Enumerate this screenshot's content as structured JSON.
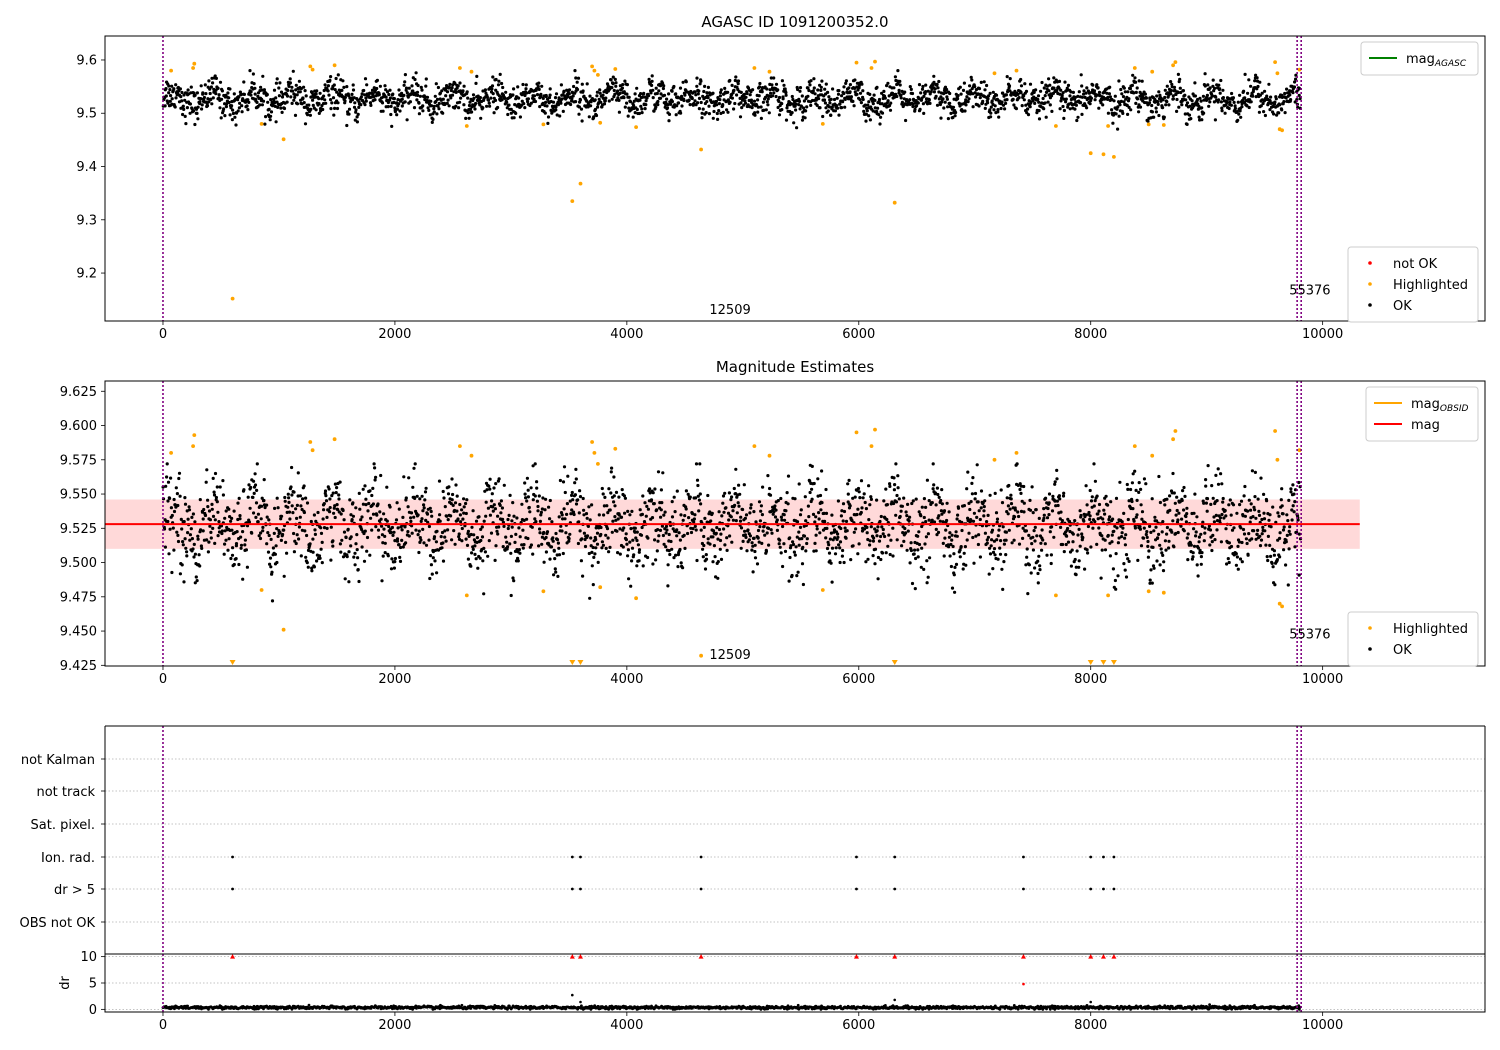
{
  "figure": {
    "title": "AGASC ID 1091200352.0"
  },
  "chart_data": [
    {
      "id": "top",
      "type": "scatter",
      "title": "AGASC ID 1091200352.0",
      "xlabel": "",
      "ylabel": "",
      "xlim": [
        -500,
        11400
      ],
      "ylim": [
        9.11,
        9.645
      ],
      "xticks": [
        0,
        2000,
        4000,
        6000,
        8000,
        10000
      ],
      "yticks": [
        9.2,
        9.3,
        9.4,
        9.5,
        9.6
      ],
      "ytick_labels": [
        "9.2",
        "9.3",
        "9.4",
        "9.5",
        "9.6"
      ],
      "grid": false,
      "legend_upper": {
        "placement": "top-right",
        "entries": [
          {
            "label": "mag",
            "sub": "AGASC",
            "color": "#008000",
            "kind": "line"
          }
        ]
      },
      "legend_lower": {
        "placement": "bottom-right",
        "entries": [
          {
            "label": "not OK",
            "color": "#ff0000",
            "kind": "dot"
          },
          {
            "label": "Highlighted",
            "color": "#ffa500",
            "kind": "dot"
          },
          {
            "label": "OK",
            "color": "#000000",
            "kind": "dot"
          }
        ]
      },
      "annotations": [
        {
          "text": "12509",
          "x": 4660,
          "y": 9.125
        },
        {
          "text": "55376",
          "x": 9660,
          "y": 9.162
        }
      ],
      "vlines": [
        0,
        9780,
        9815
      ],
      "series": {
        "ok": {
          "color": "#000000",
          "x_start": 0,
          "x_end": 9810,
          "center": 9.527,
          "spread": 0.035,
          "wave": 0.012
        },
        "highlighted": {
          "color": "#ffa500",
          "points": [
            [
              600,
              9.152
            ],
            [
              3530,
              9.335
            ],
            [
              3600,
              9.368
            ],
            [
              4640,
              9.432
            ],
            [
              6310,
              9.332
            ],
            [
              1040,
              9.451
            ],
            [
              8000,
              9.425
            ],
            [
              8110,
              9.423
            ],
            [
              8200,
              9.418
            ],
            [
              70,
              9.58
            ],
            [
              260,
              9.585
            ],
            [
              270,
              9.593
            ],
            [
              1270,
              9.588
            ],
            [
              1290,
              9.582
            ],
            [
              1480,
              9.59
            ],
            [
              2560,
              9.585
            ],
            [
              2660,
              9.578
            ],
            [
              3700,
              9.588
            ],
            [
              3720,
              9.58
            ],
            [
              3750,
              9.572
            ],
            [
              3900,
              9.583
            ],
            [
              5100,
              9.585
            ],
            [
              5230,
              9.578
            ],
            [
              5980,
              9.595
            ],
            [
              6110,
              9.585
            ],
            [
              6140,
              9.597
            ],
            [
              7170,
              9.575
            ],
            [
              7360,
              9.58
            ],
            [
              8380,
              9.585
            ],
            [
              8530,
              9.578
            ],
            [
              8710,
              9.59
            ],
            [
              8730,
              9.596
            ],
            [
              9590,
              9.596
            ],
            [
              9610,
              9.575
            ],
            [
              9800,
              9.582
            ],
            [
              850,
              9.48
            ],
            [
              2620,
              9.476
            ],
            [
              3280,
              9.479
            ],
            [
              3770,
              9.482
            ],
            [
              4080,
              9.474
            ],
            [
              5690,
              9.48
            ],
            [
              7700,
              9.476
            ],
            [
              8150,
              9.476
            ],
            [
              8500,
              9.479
            ],
            [
              8630,
              9.478
            ],
            [
              9630,
              9.47
            ],
            [
              9650,
              9.468
            ]
          ]
        }
      }
    },
    {
      "id": "middle",
      "type": "scatter",
      "title": "Magnitude Estimates",
      "xlabel": "",
      "ylabel": "",
      "xlim": [
        -500,
        11400
      ],
      "ylim": [
        9.4245,
        9.6325
      ],
      "xticks": [
        0,
        2000,
        4000,
        6000,
        8000,
        10000
      ],
      "yticks": [
        9.425,
        9.45,
        9.475,
        9.5,
        9.525,
        9.55,
        9.575,
        9.6,
        9.625
      ],
      "ytick_labels": [
        "9.425",
        "9.450",
        "9.475",
        "9.500",
        "9.525",
        "9.550",
        "9.575",
        "9.600",
        "9.625"
      ],
      "grid": false,
      "legend_upper": {
        "placement": "top-right",
        "entries": [
          {
            "label": "mag",
            "sub": "OBSID",
            "color": "#ffa500",
            "kind": "line"
          },
          {
            "label": "mag",
            "sub": "",
            "color": "#ff0000",
            "kind": "line"
          }
        ]
      },
      "legend_lower": {
        "placement": "bottom-right",
        "entries": [
          {
            "label": "Highlighted",
            "color": "#ffa500",
            "kind": "dot"
          },
          {
            "label": "OK",
            "color": "#000000",
            "kind": "dot"
          }
        ]
      },
      "annotations": [
        {
          "text": "12509",
          "x": 4660,
          "y": 9.431
        },
        {
          "text": "55376",
          "x": 9660,
          "y": 9.446
        }
      ],
      "vlines": [
        0,
        9780,
        9815
      ],
      "mag_line": {
        "value": 9.528,
        "x_start": -500,
        "x_end": 10320,
        "color": "#ff0000"
      },
      "band": {
        "low": 9.51,
        "high": 9.546,
        "x_start": -500,
        "x_end": 10320,
        "color": "#ffc0c0"
      },
      "clipped_markers": [
        600,
        3530,
        3600,
        6310,
        8000,
        8110,
        8200
      ],
      "series": {
        "ok": {
          "color": "#000000",
          "x_start": 0,
          "x_end": 9810,
          "center": 9.527,
          "spread": 0.035,
          "wave": 0.012
        },
        "highlighted": {
          "color": "#ffa500",
          "points": [
            [
              4640,
              9.432
            ],
            [
              1040,
              9.451
            ],
            [
              70,
              9.58
            ],
            [
              260,
              9.585
            ],
            [
              270,
              9.593
            ],
            [
              1270,
              9.588
            ],
            [
              1290,
              9.582
            ],
            [
              1480,
              9.59
            ],
            [
              2560,
              9.585
            ],
            [
              2660,
              9.578
            ],
            [
              3700,
              9.588
            ],
            [
              3720,
              9.58
            ],
            [
              3750,
              9.572
            ],
            [
              3900,
              9.583
            ],
            [
              5100,
              9.585
            ],
            [
              5230,
              9.578
            ],
            [
              5980,
              9.595
            ],
            [
              6110,
              9.585
            ],
            [
              6140,
              9.597
            ],
            [
              7170,
              9.575
            ],
            [
              7360,
              9.58
            ],
            [
              8380,
              9.585
            ],
            [
              8530,
              9.578
            ],
            [
              8710,
              9.59
            ],
            [
              8730,
              9.596
            ],
            [
              9590,
              9.596
            ],
            [
              9610,
              9.575
            ],
            [
              9800,
              9.582
            ],
            [
              850,
              9.48
            ],
            [
              2620,
              9.476
            ],
            [
              3280,
              9.479
            ],
            [
              3770,
              9.482
            ],
            [
              4080,
              9.474
            ],
            [
              5690,
              9.48
            ],
            [
              7700,
              9.476
            ],
            [
              8150,
              9.476
            ],
            [
              8500,
              9.479
            ],
            [
              8630,
              9.478
            ],
            [
              9630,
              9.47
            ],
            [
              9650,
              9.468
            ]
          ]
        }
      }
    },
    {
      "id": "flags",
      "type": "scatter",
      "title": "",
      "xlabel": "",
      "ylabel": "",
      "xlim": [
        -500,
        11400
      ],
      "categories": [
        "not Kalman",
        "not track",
        "Sat. pixel.",
        "Ion. rad.",
        "dr > 5",
        "OBS not OK"
      ],
      "grid": true,
      "vlines": [
        0,
        9780,
        9815
      ],
      "flagged_points": {
        "Ion. rad.": [
          600,
          3530,
          3600,
          4640,
          5980,
          6310,
          7420,
          8000,
          8110,
          8200
        ],
        "dr > 5": [
          600,
          3530,
          3600,
          4640,
          5980,
          6310,
          7420,
          8000,
          8110,
          8200
        ]
      }
    },
    {
      "id": "dr",
      "type": "scatter",
      "title": "",
      "xlabel": "",
      "ylabel": "dr",
      "xlim": [
        -500,
        11400
      ],
      "ylim": [
        -0.5,
        10.5
      ],
      "xticks": [
        0,
        2000,
        4000,
        6000,
        8000,
        10000
      ],
      "yticks": [
        0,
        5,
        10
      ],
      "grid": true,
      "vlines": [
        0,
        9780,
        9815
      ],
      "clipped_markers": [
        600,
        3530,
        3600,
        4640,
        5980,
        6310,
        7420,
        8000,
        8110,
        8200
      ],
      "series": {
        "ok": {
          "color": "#000000",
          "x_start": 0,
          "x_end": 9810,
          "center": 0.35,
          "spread": 0.3
        },
        "extra": {
          "color": "#000000",
          "points": [
            [
              3530,
              2.7
            ],
            [
              3600,
              1.4
            ],
            [
              6310,
              1.8
            ],
            [
              8000,
              1.4
            ]
          ]
        },
        "flagged": {
          "color": "#ff0000",
          "points": [
            [
              7420,
              4.8
            ]
          ]
        }
      }
    }
  ]
}
